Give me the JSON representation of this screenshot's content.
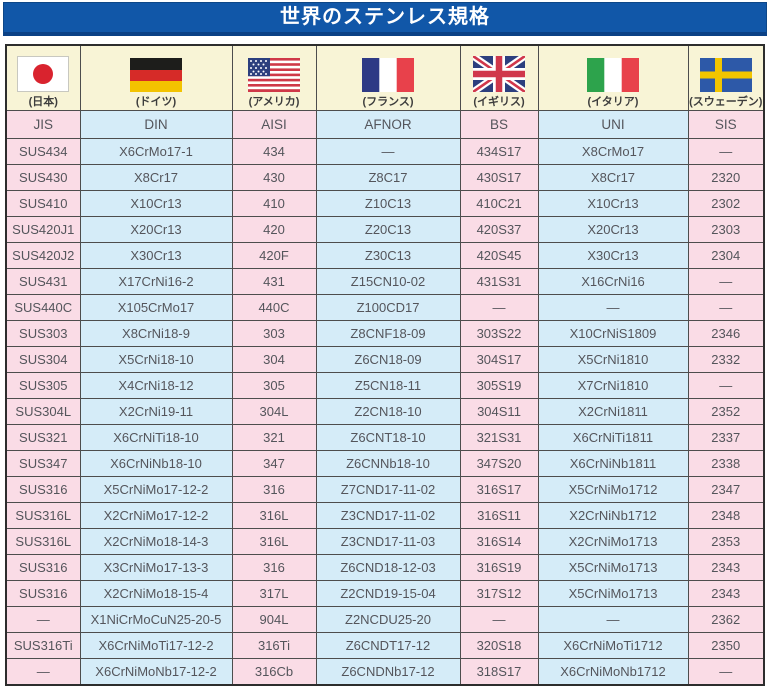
{
  "title": "世界のステンレス規格",
  "colors": {
    "title_bar": "#1157a8",
    "flag_header_bg": "#f8f4d6",
    "pink_column_bg": "#fadce6",
    "blue_column_bg": "#d5ecf8",
    "cell_text": "#54555b",
    "title_text": "#ffffff"
  },
  "table": {
    "flag_headers": [
      {
        "country": "(日本)",
        "flag": "japan-flag-icon"
      },
      {
        "country": "(ドイツ)",
        "flag": "germany-flag-icon"
      },
      {
        "country": "(アメリカ)",
        "flag": "usa-flag-icon"
      },
      {
        "country": "(フランス)",
        "flag": "france-flag-icon"
      },
      {
        "country": "(イギリス)",
        "flag": "uk-flag-icon"
      },
      {
        "country": "(イタリア)",
        "flag": "italy-flag-icon"
      },
      {
        "country": "(スウェーデン)",
        "flag": "sweden-flag-icon"
      }
    ],
    "standard_headers": [
      "JIS",
      "DIN",
      "AISI",
      "AFNOR",
      "BS",
      "UNI",
      "SIS"
    ],
    "rows": [
      [
        "SUS434",
        "X6CrMo17-1",
        "434",
        "―",
        "434S17",
        "X8CrMo17",
        "―"
      ],
      [
        "SUS430",
        "X8Cr17",
        "430",
        "Z8C17",
        "430S17",
        "X8Cr17",
        "2320"
      ],
      [
        "SUS410",
        "X10Cr13",
        "410",
        "Z10C13",
        "410C21",
        "X10Cr13",
        "2302"
      ],
      [
        "SUS420J1",
        "X20Cr13",
        "420",
        "Z20C13",
        "420S37",
        "X20Cr13",
        "2303"
      ],
      [
        "SUS420J2",
        "X30Cr13",
        "420F",
        "Z30C13",
        "420S45",
        "X30Cr13",
        "2304"
      ],
      [
        "SUS431",
        "X17CrNi16-2",
        "431",
        "Z15CN10-02",
        "431S31",
        "X16CrNi16",
        "―"
      ],
      [
        "SUS440C",
        "X105CrMo17",
        "440C",
        "Z100CD17",
        "―",
        "―",
        "―"
      ],
      [
        "SUS303",
        "X8CrNi18-9",
        "303",
        "Z8CNF18-09",
        "303S22",
        "X10CrNiS1809",
        "2346"
      ],
      [
        "SUS304",
        "X5CrNi18-10",
        "304",
        "Z6CN18-09",
        "304S17",
        "X5CrNi1810",
        "2332"
      ],
      [
        "SUS305",
        "X4CrNi18-12",
        "305",
        "Z5CN18-11",
        "305S19",
        "X7CrNi1810",
        "―"
      ],
      [
        "SUS304L",
        "X2CrNi19-11",
        "304L",
        "Z2CN18-10",
        "304S11",
        "X2CrNi1811",
        "2352"
      ],
      [
        "SUS321",
        "X6CrNiTi18-10",
        "321",
        "Z6CNT18-10",
        "321S31",
        "X6CrNiTi1811",
        "2337"
      ],
      [
        "SUS347",
        "X6CrNiNb18-10",
        "347",
        "Z6CNNb18-10",
        "347S20",
        "X6CrNiNb1811",
        "2338"
      ],
      [
        "SUS316",
        "X5CrNiMo17-12-2",
        "316",
        "Z7CND17-11-02",
        "316S17",
        "X5CrNiMo1712",
        "2347"
      ],
      [
        "SUS316L",
        "X2CrNiMo17-12-2",
        "316L",
        "Z3CND17-11-02",
        "316S11",
        "X2CrNiNb1712",
        "2348"
      ],
      [
        "SUS316L",
        "X2CrNiMo18-14-3",
        "316L",
        "Z3CND17-11-03",
        "316S14",
        "X2CrNiMo1713",
        "2353"
      ],
      [
        "SUS316",
        "X3CrNiMo17-13-3",
        "316",
        "Z6CND18-12-03",
        "316S19",
        "X5CrNiMo1713",
        "2343"
      ],
      [
        "SUS316",
        "X2CrNiMo18-15-4",
        "317L",
        "Z2CND19-15-04",
        "317S12",
        "X5CrNiMo1713",
        "2343"
      ],
      [
        "―",
        "X1NiCrMoCuN25-20-5",
        "904L",
        "Z2NCDU25-20",
        "―",
        "―",
        "2362"
      ],
      [
        "SUS316Ti",
        "X6CrNiMoTi17-12-2",
        "316Ti",
        "Z6CNDT17-12",
        "320S18",
        "X6CrNiMoTi1712",
        "2350"
      ],
      [
        "―",
        "X6CrNiMoNb17-12-2",
        "316Cb",
        "Z6CNDNb17-12",
        "318S17",
        "X6CrNiMoNb1712",
        "―"
      ]
    ]
  }
}
